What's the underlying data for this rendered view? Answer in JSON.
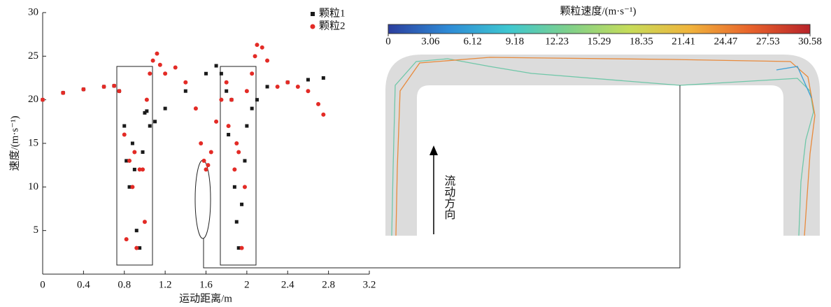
{
  "chart_data": {
    "type": "scatter",
    "xlabel": "运动距离/m",
    "ylabel": "速度/(m·s⁻¹)",
    "xlim": [
      0,
      3.2
    ],
    "xticks": [
      0,
      0.4,
      0.8,
      1.2,
      1.6,
      2.0,
      2.4,
      2.8,
      3.2
    ],
    "ylim": [
      0,
      30
    ],
    "yticks": [
      5,
      10,
      15,
      20,
      25,
      30
    ],
    "legend": "upper right",
    "series": [
      {
        "name": "颗粒1",
        "color": "#1a1a1a",
        "marker": "square",
        "x": [
          0,
          0.2,
          0.4,
          0.6,
          0.7,
          0.75,
          0.8,
          0.82,
          0.85,
          0.88,
          0.9,
          0.92,
          0.95,
          0.98,
          1.0,
          1.02,
          1.05,
          1.1,
          1.2,
          1.4,
          1.6,
          1.7,
          1.75,
          1.8,
          1.82,
          1.85,
          1.88,
          1.9,
          1.92,
          1.95,
          1.98,
          2.0,
          2.05,
          2.1,
          2.2,
          2.4,
          2.6,
          2.75
        ],
        "values": [
          20,
          20.8,
          21.2,
          21.5,
          21.6,
          21,
          17,
          13,
          10,
          15,
          12,
          5,
          3,
          14,
          18.5,
          18.7,
          17,
          17.5,
          19,
          21,
          23,
          23.9,
          23,
          21,
          16,
          20,
          10,
          6,
          3,
          8,
          13,
          17,
          19,
          20,
          21.5,
          22,
          22.3,
          22.5
        ]
      },
      {
        "name": "颗粒2",
        "color": "#e32b26",
        "marker": "circle",
        "x": [
          0,
          0.2,
          0.4,
          0.6,
          0.7,
          0.75,
          0.8,
          0.82,
          0.85,
          0.88,
          0.9,
          0.92,
          0.95,
          0.98,
          1.0,
          1.02,
          1.05,
          1.08,
          1.12,
          1.15,
          1.2,
          1.3,
          1.4,
          1.5,
          1.55,
          1.58,
          1.6,
          1.62,
          1.65,
          1.7,
          1.75,
          1.8,
          1.82,
          1.85,
          1.88,
          1.9,
          1.92,
          1.95,
          1.98,
          2.0,
          2.05,
          2.08,
          2.1,
          2.15,
          2.2,
          2.3,
          2.4,
          2.5,
          2.6,
          2.7,
          2.75
        ],
        "values": [
          20,
          20.8,
          21.2,
          21.5,
          21.6,
          21,
          16,
          4,
          13,
          10,
          14,
          3,
          12,
          12,
          6,
          20,
          23,
          24.5,
          25.3,
          24,
          23,
          23.7,
          22,
          19,
          15,
          13,
          12,
          12.5,
          14,
          17.5,
          20,
          22,
          17,
          20,
          12,
          15,
          14,
          3,
          10,
          21,
          23,
          25,
          26.3,
          26,
          24.5,
          21.5,
          22,
          21.5,
          21,
          19.5,
          18.3
        ]
      }
    ],
    "colorbar": {
      "title": "颗粒速度/(m·s⁻¹)",
      "range": [
        0,
        30.58
      ],
      "colors": [
        "#2c3e9e",
        "#2e8bd6",
        "#3ec7d0",
        "#7fd08a",
        "#c6dc5a",
        "#f0b43c",
        "#e8632b",
        "#b8232a"
      ],
      "ticks": [
        0,
        3.06,
        6.12,
        9.18,
        12.23,
        15.29,
        18.35,
        21.41,
        24.47,
        27.53,
        30.58
      ]
    },
    "flow_label": "流动方向"
  }
}
